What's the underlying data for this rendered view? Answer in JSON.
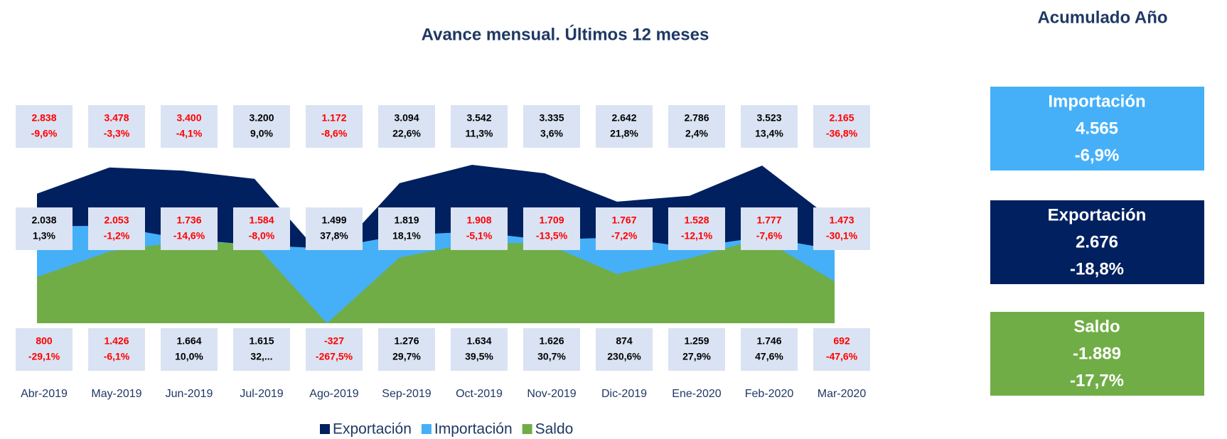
{
  "chart_data": {
    "type": "area",
    "title": "Avance mensual. Últimos 12 meses",
    "categories": [
      "Abr-2019",
      "May-2019",
      "Jun-2019",
      "Jul-2019",
      "Ago-2019",
      "Sep-2019",
      "Oct-2019",
      "Nov-2019",
      "Dic-2019",
      "Ene-2020",
      "Feb-2020",
      "Mar-2020"
    ],
    "series": [
      {
        "name": "Exportación",
        "color": "#002060",
        "values": [
          2838,
          3478,
          3400,
          3200,
          1172,
          3094,
          3542,
          3335,
          2642,
          2786,
          3523,
          2165
        ],
        "value_labels": [
          "2.838",
          "3.478",
          "3.400",
          "3.200",
          "1.172",
          "3.094",
          "3.542",
          "3.335",
          "2.642",
          "2.786",
          "3.523",
          "2.165"
        ],
        "change_labels": [
          "-9,6%",
          "-3,3%",
          "-4,1%",
          "9,0%",
          "-8,6%",
          "22,6%",
          "11,3%",
          "3,6%",
          "21,8%",
          "2,4%",
          "13,4%",
          "-36,8%"
        ]
      },
      {
        "name": "Importación",
        "color": "#45b0f8",
        "values": [
          2038,
          2053,
          1736,
          1584,
          1499,
          1819,
          1908,
          1709,
          1767,
          1528,
          1777,
          1473
        ],
        "value_labels": [
          "2.038",
          "2.053",
          "1.736",
          "1.584",
          "1.499",
          "1.819",
          "1.908",
          "1.709",
          "1.767",
          "1.528",
          "1.777",
          "1.473"
        ],
        "change_labels": [
          "1,3%",
          "-1,2%",
          "-14,6%",
          "-8,0%",
          "37,8%",
          "18,1%",
          "-5,1%",
          "-13,5%",
          "-7,2%",
          "-12,1%",
          "-7,6%",
          "-30,1%"
        ]
      },
      {
        "name": "Saldo",
        "color": "#70ad47",
        "values": [
          800,
          1426,
          1664,
          1615,
          -327,
          1276,
          1634,
          1626,
          874,
          1259,
          1746,
          692
        ],
        "value_labels": [
          "800",
          "1.426",
          "1.664",
          "1.615",
          "-327",
          "1.276",
          "1.634",
          "1.626",
          "874",
          "1.259",
          "1.746",
          "692"
        ],
        "change_labels": [
          "-29,1%",
          "-6,1%",
          "10,0%",
          "32,...",
          "-267,5%",
          "29,7%",
          "39,5%",
          "30,7%",
          "230,6%",
          "27,9%",
          "47,6%",
          "-47,6%"
        ]
      }
    ],
    "summary_title": "Acumulado Año",
    "summary": [
      {
        "name": "Importación",
        "value": "4.565",
        "change": "-6,9%",
        "color": "#45b0f8"
      },
      {
        "name": "Exportación",
        "value": "2.676",
        "change": "-18,8%",
        "color": "#002060"
      },
      {
        "name": "Saldo",
        "value": "-1.889",
        "change": "-17,7%",
        "color": "#70ad47"
      }
    ]
  }
}
